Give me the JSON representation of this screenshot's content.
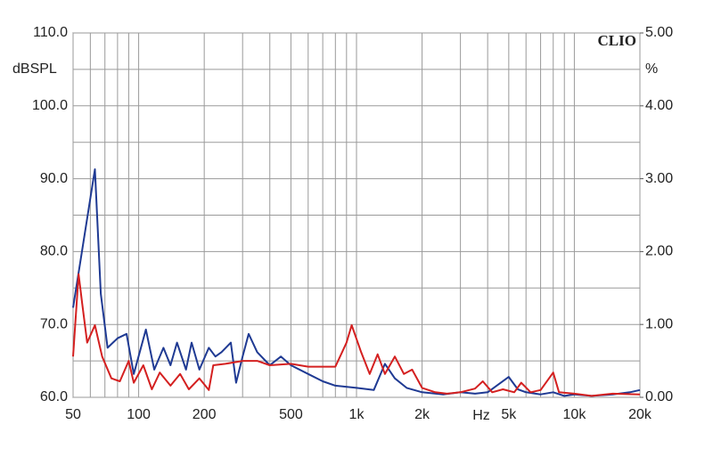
{
  "chart_data": {
    "type": "line",
    "y_label": "dBSPL",
    "y2_label": "%",
    "x_label": "Hz",
    "brand": "CLIO",
    "xlog": true,
    "xlim": [
      50,
      20000
    ],
    "xticks": [
      50,
      100,
      200,
      500,
      {
        "value": 1000,
        "label": "1k"
      },
      {
        "value": 2000,
        "label": "2k"
      },
      {
        "value": 5000,
        "label": "5k"
      },
      {
        "value": 10000,
        "label": "10k"
      },
      {
        "value": 20000,
        "label": "20k"
      }
    ],
    "x_minor_grid": [
      60,
      70,
      80,
      90,
      300,
      400,
      600,
      700,
      800,
      900,
      3000,
      4000,
      6000,
      7000,
      8000,
      9000
    ],
    "ylim": [
      60,
      110
    ],
    "yticks": [
      {
        "value": 60,
        "label": "60.0"
      },
      {
        "value": 70,
        "label": "70.0"
      },
      {
        "value": 80,
        "label": "80.0"
      },
      {
        "value": 90,
        "label": "90.0"
      },
      {
        "value": 100,
        "label": "100.0"
      },
      {
        "value": 110,
        "label": "110.0"
      }
    ],
    "y_minor_grid": [
      65,
      75,
      85,
      95,
      105
    ],
    "y2lim": [
      0,
      5
    ],
    "y2ticks": [
      {
        "value": 0,
        "label": "0.00"
      },
      {
        "value": 1,
        "label": "1.00"
      },
      {
        "value": 2,
        "label": "2.00"
      },
      {
        "value": 3,
        "label": "3.00"
      },
      {
        "value": 4,
        "label": "4.00"
      },
      {
        "value": 5,
        "label": "5.00"
      }
    ],
    "grid": true,
    "series": [
      {
        "color": "#1f3a93",
        "axis": "y2",
        "x": [
          50,
          63,
          67,
          72,
          80,
          88,
          95,
          108,
          118,
          130,
          140,
          150,
          165,
          175,
          190,
          210,
          225,
          240,
          265,
          280,
          300,
          320,
          350,
          400,
          450,
          500,
          600,
          700,
          800,
          1000,
          1200,
          1350,
          1500,
          1700,
          2000,
          2500,
          3000,
          3500,
          4000,
          5000,
          5500,
          6000,
          7000,
          8000,
          9000,
          10000,
          12000,
          15000,
          18000,
          20000
        ],
        "values": [
          1.23,
          3.13,
          1.42,
          0.68,
          0.81,
          0.87,
          0.32,
          0.93,
          0.38,
          0.68,
          0.44,
          0.75,
          0.38,
          0.75,
          0.38,
          0.68,
          0.56,
          0.62,
          0.75,
          0.2,
          0.56,
          0.87,
          0.62,
          0.44,
          0.56,
          0.44,
          0.32,
          0.22,
          0.16,
          0.13,
          0.1,
          0.46,
          0.26,
          0.13,
          0.07,
          0.04,
          0.07,
          0.05,
          0.07,
          0.28,
          0.11,
          0.07,
          0.04,
          0.07,
          0.02,
          0.04,
          0.02,
          0.04,
          0.07,
          0.1
        ]
      },
      {
        "color": "#d42020",
        "axis": "y2",
        "x": [
          50,
          53,
          55,
          58,
          63,
          68,
          75,
          82,
          90,
          95,
          105,
          115,
          125,
          140,
          155,
          170,
          190,
          210,
          220,
          250,
          300,
          350,
          400,
          500,
          600,
          800,
          900,
          950,
          1050,
          1150,
          1250,
          1350,
          1500,
          1650,
          1800,
          2000,
          2300,
          2600,
          3000,
          3500,
          3800,
          4200,
          4700,
          5300,
          5700,
          6300,
          7000,
          8000,
          8500,
          10000,
          12000,
          15000,
          20000
        ],
        "values": [
          0.56,
          1.69,
          1.3,
          0.75,
          0.99,
          0.56,
          0.26,
          0.22,
          0.5,
          0.2,
          0.44,
          0.11,
          0.34,
          0.16,
          0.32,
          0.11,
          0.26,
          0.1,
          0.44,
          0.46,
          0.5,
          0.5,
          0.44,
          0.46,
          0.42,
          0.42,
          0.75,
          0.99,
          0.62,
          0.32,
          0.59,
          0.32,
          0.56,
          0.32,
          0.38,
          0.13,
          0.07,
          0.05,
          0.07,
          0.12,
          0.22,
          0.07,
          0.11,
          0.07,
          0.2,
          0.07,
          0.1,
          0.34,
          0.07,
          0.05,
          0.02,
          0.05,
          0.04
        ]
      }
    ]
  }
}
